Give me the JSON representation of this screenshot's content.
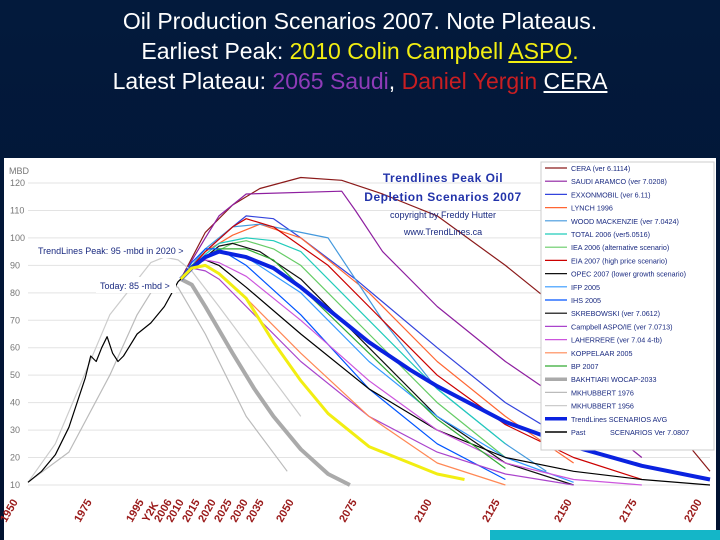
{
  "slide": {
    "title_line1": "Oil Production Scenarios 2007.  Note Plateaus.",
    "title_line2_a": "Earliest Peak:  ",
    "title_line2_b": "2010 Colin Campbell ",
    "title_line2_c": "ASPO",
    "title_line2_d": ".",
    "title_line3_a": "Latest Plateau: ",
    "title_line3_b": "2065 Saudi",
    "title_line3_c": ", ",
    "title_line3_d": "Daniel Yergin",
    "title_line3_e": " ",
    "title_line3_f": "CERA"
  },
  "chart_data": {
    "type": "line",
    "title_line1": "Trendlines Peak Oil",
    "title_line2": "Depletion Scenarios 2007",
    "copyright": "copyright by Freddy Hutter",
    "website": "www.TrendLines.ca",
    "ylabel": "MBD",
    "ylim": [
      10,
      120
    ],
    "yticks": [
      "120",
      "110",
      "100",
      "90",
      "80",
      "70",
      "60",
      "50",
      "40",
      "30",
      "20",
      "10"
    ],
    "xlim": [
      1950,
      2200
    ],
    "xticks": [
      "1950",
      "1975",
      "1995",
      "Y2K",
      "2006",
      "2010",
      "2015",
      "2020",
      "2025",
      "2030",
      "2035",
      "2050",
      "2075",
      "2100",
      "2125",
      "2150",
      "2175",
      "2200"
    ],
    "annotation_peak": "TrendLines Peak:  95 -mbd in 2020 >",
    "annotation_today": "Today:  85 -mbd >",
    "historical": {
      "name": "Past",
      "color": "#000000",
      "x": [
        1950,
        1955,
        1960,
        1965,
        1968,
        1971,
        1973,
        1975,
        1977,
        1979,
        1981,
        1983,
        1985,
        1990,
        1995,
        2000,
        2005,
        2006
      ],
      "y": [
        11,
        15,
        21,
        31,
        40,
        49,
        57,
        55,
        60,
        64,
        58,
        55,
        57,
        65,
        69,
        75,
        84,
        85
      ]
    },
    "series": [
      {
        "name": "CERA (ver 6.1114)",
        "color": "#8b1a1a",
        "width": 1.2,
        "x": [
          2006,
          2015,
          2025,
          2035,
          2050,
          2065,
          2080,
          2100,
          2125,
          2150,
          2175,
          2200
        ],
        "y": [
          85,
          102,
          112,
          118,
          122,
          121,
          116,
          108,
          90,
          70,
          45,
          15
        ]
      },
      {
        "name": "SAUDI ARAMCO (ver 7.0208)",
        "color": "#8e1fa0",
        "width": 1.2,
        "x": [
          2006,
          2015,
          2020,
          2030,
          2065,
          2070,
          2080,
          2100,
          2125,
          2150,
          2165,
          2175
        ],
        "y": [
          85,
          100,
          108,
          116,
          117,
          110,
          95,
          75,
          55,
          38,
          28,
          20
        ]
      },
      {
        "name": "EXXONMOBIL (ver 6.11)",
        "color": "#3344dd",
        "width": 1.2,
        "x": [
          2006,
          2015,
          2025,
          2030,
          2040,
          2050,
          2070,
          2100,
          2125,
          2150
        ],
        "y": [
          85,
          95,
          104,
          108,
          107,
          100,
          85,
          60,
          40,
          25
        ]
      },
      {
        "name": "LYNCH 1996",
        "color": "#ff6633",
        "width": 1.2,
        "x": [
          2006,
          2015,
          2025,
          2035,
          2050,
          2075,
          2100,
          2125,
          2150
        ],
        "y": [
          85,
          95,
          101,
          105,
          100,
          80,
          55,
          35,
          18
        ]
      },
      {
        "name": "WOOD MACKENZIE (ver 7.0424)",
        "color": "#4499dd",
        "width": 1.2,
        "x": [
          2006,
          2015,
          2025,
          2035,
          2040,
          2060,
          2080,
          2100,
          2125,
          2140
        ],
        "y": [
          85,
          96,
          104,
          105,
          104,
          100,
          70,
          45,
          25,
          15
        ]
      },
      {
        "name": "TOTAL 2006 (ver5.0516)",
        "color": "#22ccbb",
        "width": 1.2,
        "x": [
          2006,
          2015,
          2020,
          2030,
          2040,
          2050,
          2075,
          2100,
          2125
        ],
        "y": [
          85,
          94,
          98,
          100,
          99,
          95,
          70,
          45,
          25
        ]
      },
      {
        "name": "IEA 2006 (alternative scenario)",
        "color": "#66cc66",
        "width": 1.2,
        "x": [
          2006,
          2015,
          2025,
          2030,
          2040,
          2050,
          2075,
          2100,
          2125
        ],
        "y": [
          85,
          93,
          98,
          99,
          96,
          90,
          65,
          40,
          20
        ]
      },
      {
        "name": "EIA 2007 (high price scenario)",
        "color": "#cc0000",
        "width": 1.2,
        "x": [
          2006,
          2015,
          2025,
          2030,
          2040,
          2060,
          2080,
          2100,
          2125,
          2150,
          2175
        ],
        "y": [
          85,
          95,
          104,
          107,
          104,
          90,
          70,
          50,
          32,
          20,
          12
        ]
      },
      {
        "name": "OPEC 2007 (lower growth scenario)",
        "color": "#111111",
        "width": 1.2,
        "x": [
          2006,
          2015,
          2020,
          2025,
          2035,
          2050,
          2075,
          2100,
          2125,
          2150
        ],
        "y": [
          85,
          93,
          97,
          98,
          95,
          85,
          60,
          35,
          18,
          10
        ]
      },
      {
        "name": "IFP 2005",
        "color": "#3399ff",
        "width": 1.2,
        "x": [
          2006,
          2010,
          2020,
          2030,
          2050,
          2075,
          2100,
          2125,
          2150
        ],
        "y": [
          85,
          90,
          95,
          93,
          80,
          55,
          35,
          20,
          11
        ]
      },
      {
        "name": "IHS 2005",
        "color": "#0055ff",
        "width": 1.2,
        "x": [
          2006,
          2010,
          2015,
          2020,
          2030,
          2050,
          2075,
          2100,
          2125
        ],
        "y": [
          85,
          91,
          96,
          96,
          90,
          72,
          45,
          25,
          12
        ]
      },
      {
        "name": "SKREBOWSKI (ver 7.0612)",
        "color": "#000000",
        "width": 1.2,
        "x": [
          2006,
          2010,
          2015,
          2020,
          2030,
          2050,
          2075,
          2100,
          2125,
          2150,
          2175,
          2200
        ],
        "y": [
          85,
          90,
          92,
          90,
          82,
          65,
          45,
          30,
          20,
          15,
          12,
          10
        ]
      },
      {
        "name": "Campbell ASPO/IE (ver 7.0713)",
        "color": "#aa44cc",
        "width": 1.2,
        "x": [
          2006,
          2010,
          2015,
          2020,
          2030,
          2050,
          2075,
          2100,
          2125,
          2150
        ],
        "y": [
          85,
          89,
          88,
          85,
          75,
          55,
          35,
          22,
          14,
          10
        ]
      },
      {
        "name": "LAHERRERE (ver 7.04 4-tb)",
        "color": "#cc55dd",
        "width": 1.2,
        "x": [
          2006,
          2010,
          2015,
          2020,
          2030,
          2050,
          2075,
          2100,
          2125,
          2150,
          2175
        ],
        "y": [
          85,
          90,
          92,
          91,
          86,
          70,
          48,
          30,
          18,
          12,
          10
        ]
      },
      {
        "name": "KOPPELAAR 2005",
        "color": "#ff8855",
        "width": 1.2,
        "x": [
          2006,
          2010,
          2015,
          2020,
          2030,
          2050,
          2075,
          2100,
          2125
        ],
        "y": [
          85,
          89,
          90,
          87,
          78,
          58,
          35,
          18,
          10
        ]
      },
      {
        "name": "BP 2007",
        "color": "#33aa33",
        "width": 1.2,
        "x": [
          2006,
          2010,
          2020,
          2030,
          2040,
          2050,
          2075,
          2100,
          2125
        ],
        "y": [
          85,
          90,
          96,
          96,
          92,
          82,
          58,
          34,
          16
        ]
      },
      {
        "name": "BAKHTIARI WOCAP-2033",
        "color": "#aaaaaa",
        "width": 4,
        "x": [
          2006,
          2010,
          2015,
          2025,
          2033,
          2040,
          2050,
          2060,
          2068
        ],
        "y": [
          85,
          83,
          75,
          58,
          45,
          35,
          23,
          14,
          10
        ]
      },
      {
        "name": "MKHUBBERT 1976",
        "color": "#bbbbbb",
        "width": 1.2,
        "x": [
          1950,
          1965,
          1980,
          1990,
          1995,
          2000,
          2005,
          2015,
          2030,
          2045
        ],
        "y": [
          11,
          22,
          50,
          72,
          80,
          84,
          82,
          65,
          35,
          15
        ]
      },
      {
        "name": "MKHUBBERT 1956",
        "color": "#cccccc",
        "width": 1.2,
        "x": [
          1950,
          1960,
          1980,
          1995,
          2000,
          2005,
          2010,
          2020,
          2035,
          2050
        ],
        "y": [
          11,
          25,
          72,
          91,
          93,
          92,
          88,
          75,
          55,
          35
        ]
      },
      {
        "name": "TrendLines SCENARIOS AVG",
        "color": "#0a22e0",
        "width": 4,
        "x": [
          2006,
          2010,
          2015,
          2020,
          2030,
          2040,
          2050,
          2060,
          2075,
          2090,
          2100,
          2125,
          2150,
          2175,
          2200
        ],
        "y": [
          85,
          89,
          93,
          95,
          93,
          89,
          82,
          74,
          62,
          52,
          46,
          33,
          24,
          17,
          12
        ]
      },
      {
        "name": "Campbell yellow",
        "color": "#f2ee12",
        "width": 3,
        "hide_legend": true,
        "x": [
          2006,
          2010,
          2015,
          2020,
          2030,
          2040,
          2050,
          2060,
          2075,
          2100,
          2110
        ],
        "y": [
          85,
          89,
          90,
          87,
          78,
          62,
          48,
          36,
          24,
          14,
          12
        ]
      }
    ],
    "legend_extra": "SCENARIOS Ver 7.0807"
  }
}
